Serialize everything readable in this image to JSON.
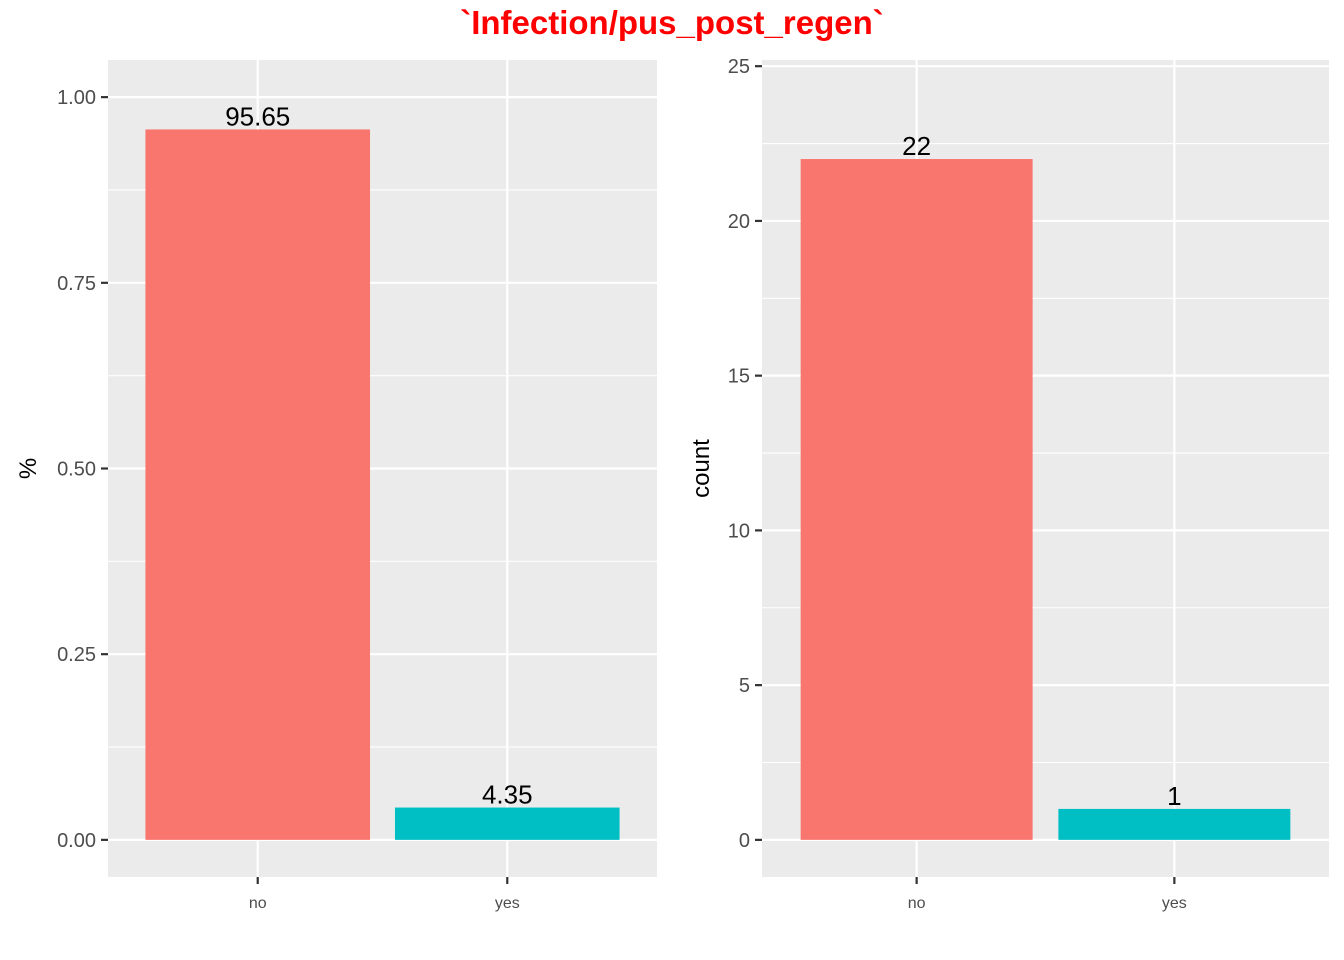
{
  "title": "`Infection/pus_post_regen`",
  "colors": {
    "no": "#F8766D",
    "yes": "#00BFC4",
    "panel": "#EBEBEB",
    "grid": "#FFFFFF",
    "title": "#FF0000"
  },
  "chart_data": [
    {
      "type": "bar",
      "categories": [
        "no",
        "yes"
      ],
      "values": [
        0.9565,
        0.0435
      ],
      "data_labels": [
        "95.65",
        "4.35"
      ],
      "ylabel": "%",
      "xlabel": "",
      "ylim": [
        -0.05,
        1.05
      ],
      "yticks": [
        0.0,
        0.25,
        0.5,
        0.75,
        1.0
      ],
      "ytick_labels": [
        "0.00",
        "0.25",
        "0.50",
        "0.75",
        "1.00"
      ],
      "grid": true
    },
    {
      "type": "bar",
      "categories": [
        "no",
        "yes"
      ],
      "values": [
        22,
        1
      ],
      "data_labels": [
        "22",
        "1"
      ],
      "ylabel": "count",
      "xlabel": "",
      "ylim": [
        -1.2,
        25.2
      ],
      "yticks": [
        0,
        5,
        10,
        15,
        20,
        25
      ],
      "ytick_labels": [
        "0",
        "5",
        "10",
        "15",
        "20",
        "25"
      ],
      "grid": true
    }
  ]
}
